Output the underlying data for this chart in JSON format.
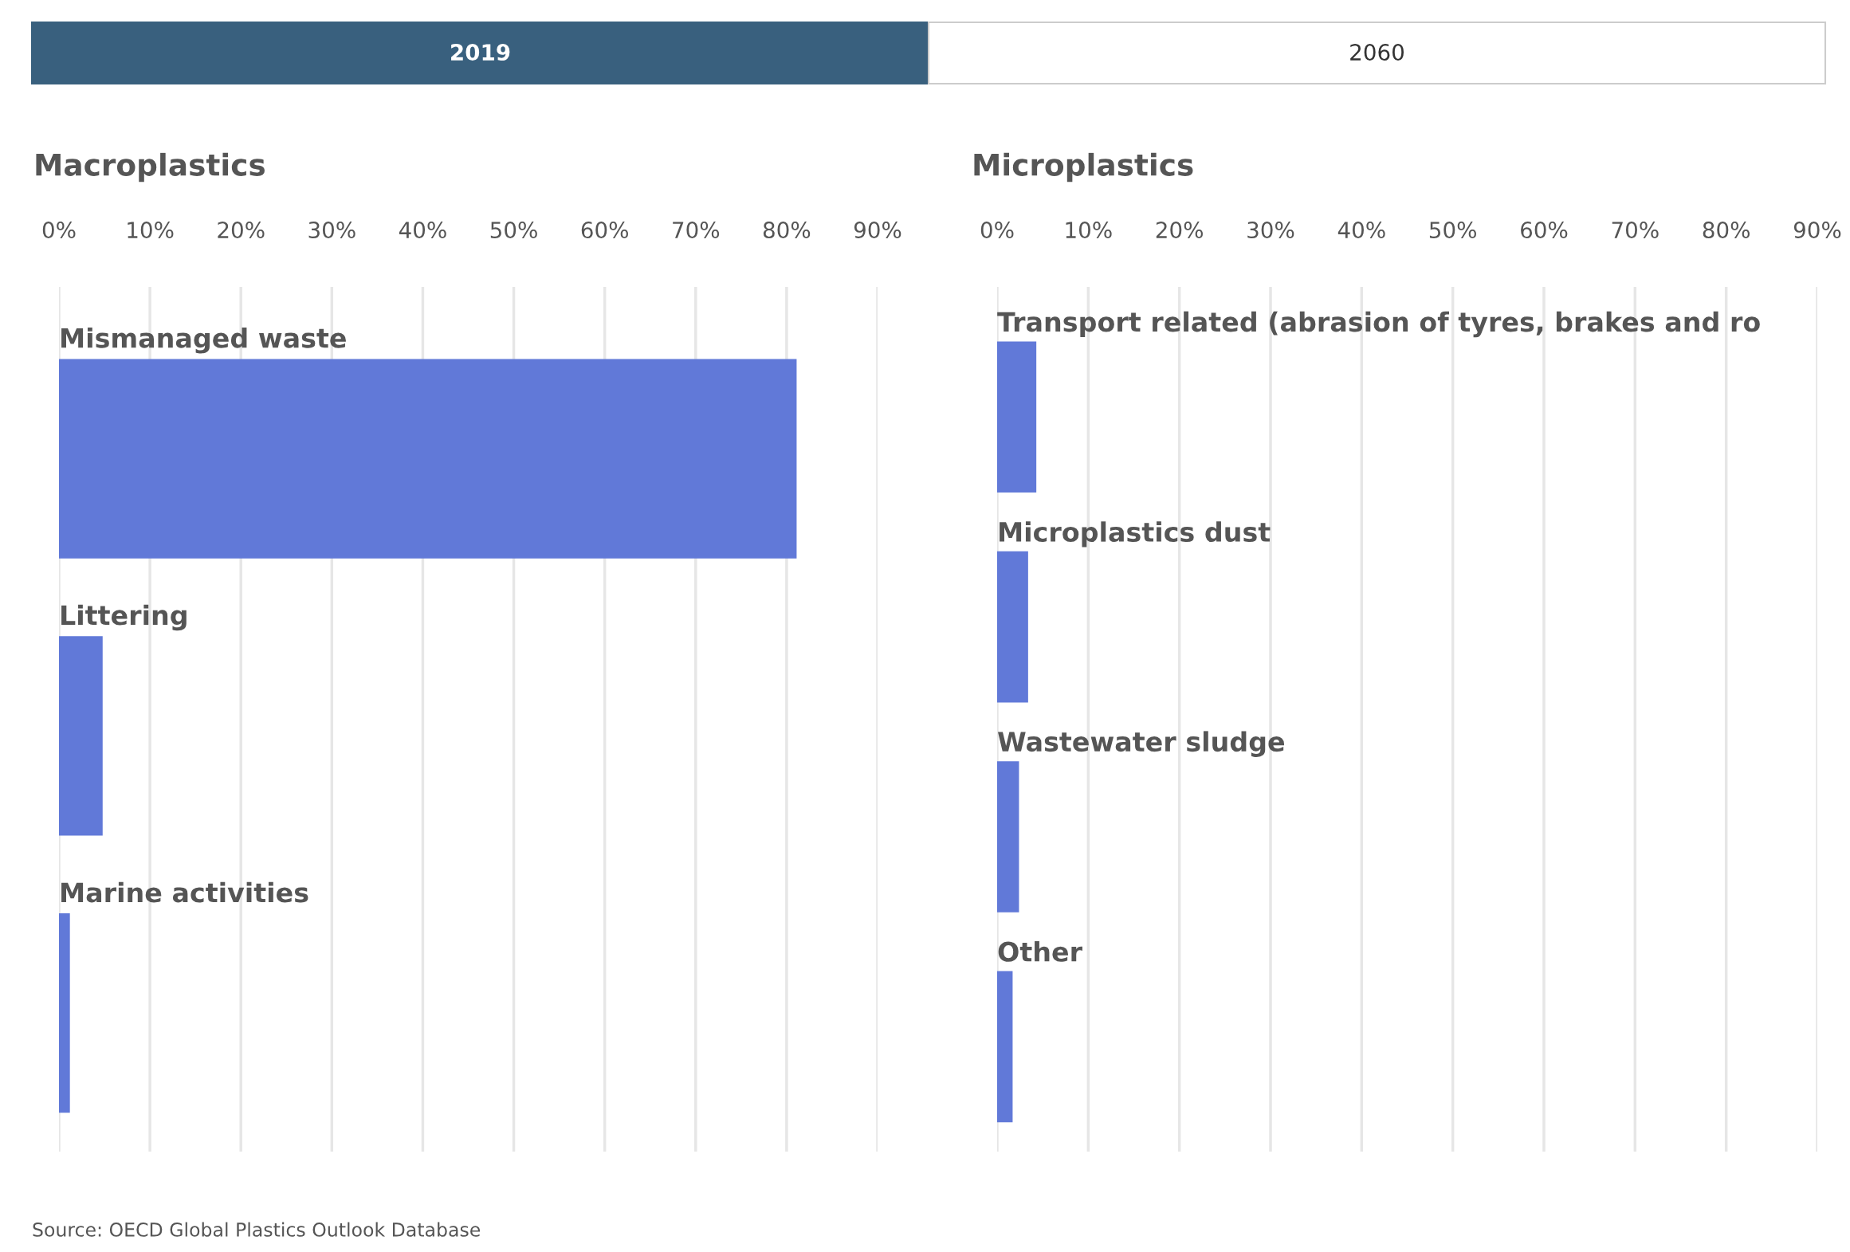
{
  "chart_data": [
    {
      "type": "bar",
      "orientation": "horizontal",
      "title": "Macroplastics",
      "categories": [
        "Mismanaged waste",
        "Littering",
        "Marine activities"
      ],
      "values": [
        81.1,
        4.8,
        1.2
      ],
      "color": "#6179d8",
      "xlim": [
        0,
        90
      ],
      "xticks": [
        {
          "value": 0,
          "label": "0%"
        },
        {
          "value": 10,
          "label": "10%"
        },
        {
          "value": 20,
          "label": "20%"
        },
        {
          "value": 30,
          "label": "30%"
        },
        {
          "value": 40,
          "label": "40%"
        },
        {
          "value": 50,
          "label": "50%"
        },
        {
          "value": 60,
          "label": "60%"
        },
        {
          "value": 70,
          "label": "70%"
        },
        {
          "value": 80,
          "label": "80%"
        },
        {
          "value": 90,
          "label": "90%"
        }
      ],
      "grid": "x",
      "annotations": [
        "2019",
        "2060",
        "Source: OECD Global Plastics Outlook Database"
      ]
    },
    {
      "type": "bar",
      "orientation": "horizontal",
      "title": "Microplastics",
      "categories": [
        "Transport related (abrasion of tyres, brakes and ro",
        "Microplastics dust",
        "Wastewater sludge",
        "Other"
      ],
      "values": [
        4.3,
        3.4,
        2.4,
        1.7
      ],
      "color": "#6179d8",
      "xlim": [
        0,
        90
      ],
      "xticks": [
        {
          "value": 0,
          "label": "0%"
        },
        {
          "value": 10,
          "label": "10%"
        },
        {
          "value": 20,
          "label": "20%"
        },
        {
          "value": 30,
          "label": "30%"
        },
        {
          "value": 40,
          "label": "40%"
        },
        {
          "value": 50,
          "label": "50%"
        },
        {
          "value": 60,
          "label": "60%"
        },
        {
          "value": 70,
          "label": "70%"
        },
        {
          "value": 80,
          "label": "80%"
        },
        {
          "value": 90,
          "label": "90%"
        }
      ],
      "grid": "x"
    }
  ]
}
